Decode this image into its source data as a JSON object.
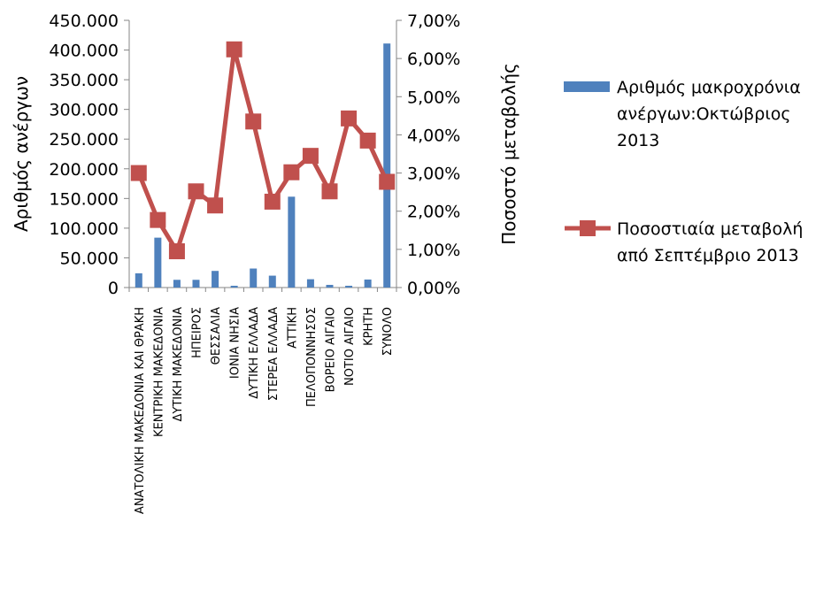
{
  "chart_data": {
    "type": "bar",
    "title": "",
    "categories": [
      "ΑΝΑΤΟΛΙΚΗ ΜΑΚΕΔΟΝΙΑ ΚΑΙ ΘΡΑΚΗ",
      "ΚΕΝΤΡΙΚΗ ΜΑΚΕΔΟΝΙΑ",
      "ΔΥΤΙΚΗ ΜΑΚΕΔΟΝΙΑ",
      "ΗΠΕΙΡΟΣ",
      "ΘΕΣΣΑΛΙΑ",
      "ΙΟΝΙΑ ΝΗΣΙΑ",
      "ΔΥΤΙΚΗ ΕΛΛΑΔΑ",
      "ΣΤΕΡΕΑ ΕΛΛΑΔΑ",
      "ΑΤΤΙΚΗ",
      "ΠΕΛΟΠΟΝΝΗΣΟΣ",
      "ΒΟΡΕΙΟ ΑΙΓΑΙΟ",
      "ΝΟΤΙΟ ΑΙΓΑΙΟ",
      "ΚΡΗΤΗ",
      "ΣΥΝΟΛΟ"
    ],
    "series": [
      {
        "name": "Αριθμός μακροχρόνια ανέργων:Οκτώβριος 2013",
        "type": "bar",
        "axis": "left",
        "color": "#4F81BD",
        "values": [
          24000,
          84000,
          13000,
          13000,
          28000,
          3000,
          32000,
          20000,
          153000,
          14000,
          4500,
          3000,
          13500,
          411000
        ]
      },
      {
        "name": "Ποσοστιαία μεταβολή από Σεπτέμβριο 2013",
        "type": "line",
        "axis": "right",
        "color": "#C0504D",
        "marker": "square",
        "values": [
          0.03,
          0.0177,
          0.0095,
          0.0252,
          0.0215,
          0.0624,
          0.0435,
          0.0225,
          0.0302,
          0.0345,
          0.0252,
          0.0443,
          0.0385,
          0.0277
        ]
      }
    ],
    "y_left": {
      "label": "Αριθμός ανέργων",
      "range": [
        0,
        450000
      ],
      "ticks": [
        "0",
        "50.000",
        "100.000",
        "150.000",
        "200.000",
        "250.000",
        "300.000",
        "350.000",
        "400.000",
        "450.000"
      ]
    },
    "y_right": {
      "label": "Ποσοστό μεταβολής",
      "range": [
        0,
        0.07
      ],
      "ticks": [
        "0,00%",
        "1,00%",
        "2,00%",
        "3,00%",
        "4,00%",
        "5,00%",
        "6,00%",
        "7,00%"
      ]
    },
    "grid": false,
    "legend": {
      "position": "right",
      "entries": [
        {
          "lines": [
            "Αριθμός μακροχρόνια",
            "ανέργων:Οκτώβριος",
            "2013"
          ]
        },
        {
          "lines": [
            "Ποσοστιαία μεταβολή",
            "από Σεπτέμβριο  2013"
          ]
        }
      ]
    }
  }
}
